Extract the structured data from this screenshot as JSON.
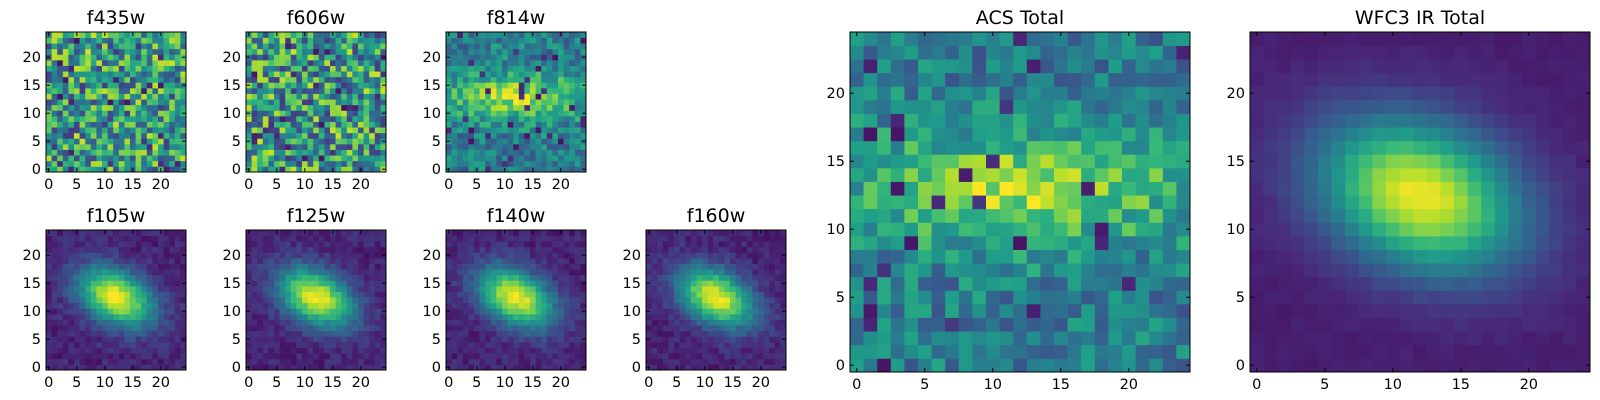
{
  "chart_data": [
    {
      "id": "f435w",
      "type": "heatmap",
      "title": "f435w",
      "pattern": "noise",
      "grid_size": 25,
      "xticks": [
        0,
        5,
        10,
        15,
        20
      ],
      "yticks": [
        0,
        5,
        10,
        15,
        20
      ],
      "xlim": [
        0,
        24
      ],
      "ylim": [
        0,
        24
      ],
      "colormap": "viridis",
      "grid": false
    },
    {
      "id": "f606w",
      "type": "heatmap",
      "title": "f606w",
      "pattern": "noise",
      "grid_size": 25,
      "xticks": [
        0,
        5,
        10,
        15,
        20
      ],
      "yticks": [
        0,
        5,
        10,
        15,
        20
      ],
      "xlim": [
        0,
        24
      ],
      "ylim": [
        0,
        24
      ],
      "colormap": "viridis",
      "grid": false
    },
    {
      "id": "f814w",
      "type": "heatmap",
      "title": "f814w",
      "pattern": "band",
      "grid_size": 25,
      "xticks": [
        0,
        5,
        10,
        15,
        20
      ],
      "yticks": [
        0,
        5,
        10,
        15,
        20
      ],
      "xlim": [
        0,
        24
      ],
      "ylim": [
        0,
        24
      ],
      "colormap": "viridis",
      "grid": false
    },
    {
      "id": "f105w",
      "type": "heatmap",
      "title": "f105w",
      "pattern": "galaxy",
      "grid_size": 25,
      "xticks": [
        0,
        5,
        10,
        15,
        20
      ],
      "yticks": [
        0,
        5,
        10,
        15,
        20
      ],
      "xlim": [
        0,
        24
      ],
      "ylim": [
        0,
        24
      ],
      "colormap": "viridis",
      "grid": false
    },
    {
      "id": "f125w",
      "type": "heatmap",
      "title": "f125w",
      "pattern": "galaxy",
      "grid_size": 25,
      "xticks": [
        0,
        5,
        10,
        15,
        20
      ],
      "yticks": [
        0,
        5,
        10,
        15,
        20
      ],
      "xlim": [
        0,
        24
      ],
      "ylim": [
        0,
        24
      ],
      "colormap": "viridis",
      "grid": false
    },
    {
      "id": "f140w",
      "type": "heatmap",
      "title": "f140w",
      "pattern": "galaxy",
      "grid_size": 25,
      "xticks": [
        0,
        5,
        10,
        15,
        20
      ],
      "yticks": [
        0,
        5,
        10,
        15,
        20
      ],
      "xlim": [
        0,
        24
      ],
      "ylim": [
        0,
        24
      ],
      "colormap": "viridis",
      "grid": false
    },
    {
      "id": "f160w",
      "type": "heatmap",
      "title": "f160w",
      "pattern": "galaxy",
      "grid_size": 25,
      "xticks": [
        0,
        5,
        10,
        15,
        20
      ],
      "yticks": [
        0,
        5,
        10,
        15,
        20
      ],
      "xlim": [
        0,
        24
      ],
      "ylim": [
        0,
        24
      ],
      "colormap": "viridis",
      "grid": false
    },
    {
      "id": "acs-total",
      "type": "heatmap",
      "title": "ACS Total",
      "pattern": "band",
      "grid_size": 25,
      "xticks": [
        0,
        5,
        10,
        15,
        20
      ],
      "yticks": [
        0,
        5,
        10,
        15,
        20
      ],
      "xlim": [
        0,
        24
      ],
      "ylim": [
        0,
        24
      ],
      "colormap": "viridis",
      "grid": false
    },
    {
      "id": "wfc3-total",
      "type": "heatmap",
      "title": "WFC3 IR Total",
      "pattern": "smooth",
      "grid_size": 25,
      "xticks": [
        0,
        5,
        10,
        15,
        20
      ],
      "yticks": [
        0,
        5,
        10,
        15,
        20
      ],
      "xlim": [
        0,
        24
      ],
      "ylim": [
        0,
        24
      ],
      "colormap": "viridis",
      "grid": false
    }
  ]
}
